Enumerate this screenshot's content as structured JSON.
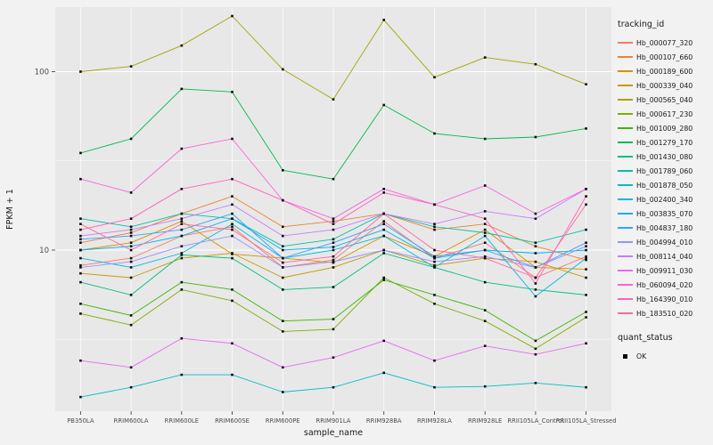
{
  "figure": {
    "bg": "#f2f2f2"
  },
  "chart_data": {
    "type": "line",
    "title": "",
    "xlabel": "sample_name",
    "ylabel": "FPKM + 1",
    "y_scale": "log10",
    "ylim": [
      1.25,
      230
    ],
    "y_ticks": [
      10,
      100
    ],
    "y_minor_ticks": [
      3.1623,
      31.623
    ],
    "panel_bg": "#e8e8e8",
    "grid_color": "#ffffff",
    "tick_color": "#333333",
    "tick_label_color": "#4d4d4d",
    "axis_title_color": "#1a1a1a",
    "point_color": "#0a0a0a",
    "point_shape": "square",
    "categories": [
      "PB350LA",
      "RRIM600LA",
      "RRIM600LE",
      "RRIM600SE",
      "RRIM600PE",
      "RRIM901LA",
      "RRIM928BA",
      "RRIM928LA",
      "RRIM928LE",
      "RRII105LA_Control",
      "RRII105LA_Stressed"
    ],
    "series": [
      {
        "name": "Hb_000077_320",
        "color": "#F8766D",
        "values": [
          8.2,
          9,
          12,
          13.5,
          8,
          8.8,
          14.5,
          9,
          11,
          7,
          9.2
        ]
      },
      {
        "name": "Hb_000107_660",
        "color": "#EA8331",
        "values": [
          11,
          12.5,
          16,
          20,
          13.5,
          14.5,
          16,
          13,
          14,
          10.5,
          8.8
        ]
      },
      {
        "name": "Hb_000189_600",
        "color": "#D89000",
        "values": [
          10,
          11,
          14.5,
          9.5,
          9,
          8.5,
          12,
          9.2,
          13,
          8,
          7.8
        ]
      },
      {
        "name": "Hb_000339_040",
        "color": "#C09B00",
        "values": [
          7.4,
          7,
          9,
          9.6,
          7,
          8,
          10,
          8.2,
          9,
          8.6,
          7
        ]
      },
      {
        "name": "Hb_000565_040",
        "color": "#A3A500",
        "values": [
          100,
          107,
          140,
          205,
          103,
          70,
          195,
          93,
          120,
          110,
          85
        ]
      },
      {
        "name": "Hb_000617_230",
        "color": "#7CAE00",
        "values": [
          4.4,
          3.8,
          6,
          5.2,
          3.5,
          3.6,
          7,
          5,
          4,
          2.8,
          4.2
        ]
      },
      {
        "name": "Hb_001009_280",
        "color": "#39B600",
        "values": [
          5,
          4.3,
          6.6,
          6,
          4,
          4.1,
          6.8,
          5.6,
          4.6,
          3.1,
          4.5
        ]
      },
      {
        "name": "Hb_001279_170",
        "color": "#00BB4E",
        "values": [
          35,
          42,
          80,
          77,
          28,
          25,
          65,
          45,
          42,
          43,
          48
        ]
      },
      {
        "name": "Hb_001430_080",
        "color": "#00BF7D",
        "values": [
          6.6,
          5.6,
          9.4,
          9,
          6,
          6.2,
          9.6,
          8,
          6.6,
          6,
          5.6
        ]
      },
      {
        "name": "Hb_001789_060",
        "color": "#00C1A3",
        "values": [
          15,
          13.5,
          16,
          15,
          10.5,
          11.5,
          16,
          13.5,
          12.5,
          11,
          13
        ]
      },
      {
        "name": "Hb_001878_050",
        "color": "#00BFC4",
        "values": [
          1.5,
          1.7,
          2.0,
          2.0,
          1.6,
          1.7,
          2.05,
          1.7,
          1.72,
          1.8,
          1.7
        ]
      },
      {
        "name": "Hb_002400_340",
        "color": "#00BAE0",
        "values": [
          9,
          8,
          9.6,
          14,
          9,
          10,
          12,
          8,
          12,
          5.5,
          9
        ]
      },
      {
        "name": "Hb_003835_070",
        "color": "#00B0F6",
        "values": [
          10,
          10.5,
          12,
          15,
          10,
          10.4,
          13,
          9,
          10,
          9.6,
          10
        ]
      },
      {
        "name": "Hb_004837_180",
        "color": "#35A2FF",
        "values": [
          11.5,
          12,
          13,
          16,
          9,
          11,
          14,
          9.2,
          10,
          8,
          11
        ]
      },
      {
        "name": "Hb_004994_010",
        "color": "#9590FF",
        "values": [
          8,
          8.6,
          10.5,
          12,
          8,
          8.6,
          10,
          8.6,
          9.2,
          8,
          10.5
        ]
      },
      {
        "name": "Hb_008114_040",
        "color": "#C77CFF",
        "values": [
          12,
          13,
          15,
          18,
          12,
          13,
          16,
          14,
          16.5,
          15,
          22
        ]
      },
      {
        "name": "Hb_009911_030",
        "color": "#E76BF3",
        "values": [
          2.4,
          2.2,
          3.2,
          3.0,
          2.2,
          2.5,
          3.1,
          2.4,
          2.9,
          2.6,
          3.0
        ]
      },
      {
        "name": "Hb_060094_020",
        "color": "#FA62DB",
        "values": [
          25,
          21,
          37,
          42,
          19,
          15,
          22,
          18,
          23,
          16,
          22
        ]
      },
      {
        "name": "Hb_164390_010",
        "color": "#FF62BC",
        "values": [
          13,
          15,
          22,
          25,
          19,
          14,
          21,
          18,
          15,
          6.5,
          20
        ]
      },
      {
        "name": "Hb_183510_020",
        "color": "#FF6A98",
        "values": [
          14,
          10,
          14,
          13,
          8.5,
          9.2,
          16,
          10,
          9,
          7,
          18
        ]
      }
    ],
    "legend": {
      "color_title": "tracking_id",
      "shape_title": "quant_status",
      "shape_items": [
        {
          "label": "OK",
          "color": "#000000",
          "shape": "square"
        }
      ]
    }
  }
}
